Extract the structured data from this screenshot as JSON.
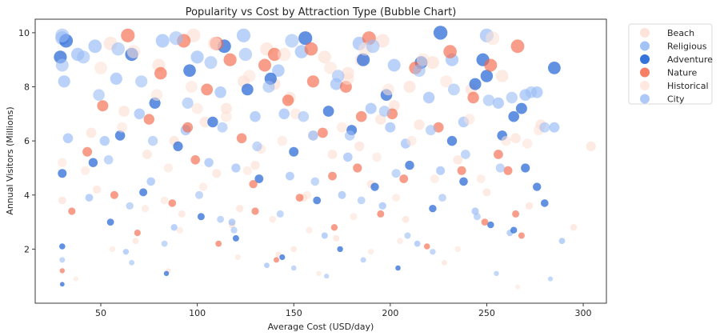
{
  "chart_data": {
    "type": "scatter",
    "subtype": "bubble",
    "title": "Popularity vs Cost by Attraction Type (Bubble Chart)",
    "xlabel": "Average Cost (USD/day)",
    "ylabel": "Annual Visitors (Millions)",
    "xlim": [
      16,
      312
    ],
    "ylim": [
      0,
      10.5
    ],
    "xticks": [
      50,
      100,
      150,
      200,
      250,
      300
    ],
    "yticks": [
      2,
      4,
      6,
      8,
      10
    ],
    "grid": false,
    "legend_position": "outside-top-right",
    "series": [
      {
        "name": "Beach",
        "color": "#fcd9cc",
        "alpha": 0.55,
        "points": [
          [
            30,
            3.8
          ],
          [
            45,
            6.3
          ],
          [
            48,
            4.2
          ],
          [
            55,
            9.6
          ],
          [
            62,
            7.1
          ],
          [
            68,
            2.3
          ],
          [
            74,
            5.5
          ],
          [
            80,
            8.8
          ],
          [
            85,
            1.2
          ],
          [
            92,
            3.3
          ],
          [
            98,
            9.9
          ],
          [
            104,
            6.7
          ],
          [
            110,
            4.8
          ],
          [
            118,
            2.9
          ],
          [
            124,
            8.2
          ],
          [
            130,
            5.1
          ],
          [
            136,
            9.4
          ],
          [
            142,
            1.8
          ],
          [
            148,
            7.6
          ],
          [
            155,
            3.9
          ],
          [
            160,
            6.2
          ],
          [
            166,
            9.1
          ],
          [
            172,
            2.4
          ],
          [
            178,
            8.5
          ],
          [
            184,
            5.8
          ],
          [
            190,
            4.4
          ],
          [
            196,
            9.7
          ],
          [
            202,
            7.3
          ],
          [
            208,
            3.1
          ],
          [
            215,
            6.6
          ],
          [
            222,
            8.9
          ],
          [
            228,
            1.5
          ],
          [
            235,
            5.3
          ],
          [
            242,
            7.9
          ],
          [
            250,
            4.1
          ],
          [
            258,
            8.4
          ],
          [
            265,
            6.1
          ],
          [
            272,
            3.6
          ],
          [
            278,
            6.6
          ],
          [
            295,
            2.8
          ],
          [
            304,
            5.8
          ],
          [
            88,
            6.0
          ],
          [
            115,
            7.2
          ],
          [
            140,
            8.1
          ],
          [
            170,
            5.5
          ],
          [
            195,
            6.8
          ],
          [
            122,
            3.5
          ],
          [
            150,
            2.0
          ],
          [
            185,
            9.0
          ],
          [
            210,
            8.0
          ]
        ]
      },
      {
        "name": "Religious",
        "color": "#8cb4f5",
        "alpha": 0.6,
        "points": [
          [
            30,
            9.8
          ],
          [
            31,
            8.2
          ],
          [
            33,
            6.1
          ],
          [
            38,
            9.2
          ],
          [
            44,
            3.9
          ],
          [
            47,
            9.5
          ],
          [
            52,
            6.0
          ],
          [
            58,
            8.3
          ],
          [
            63,
            1.9
          ],
          [
            70,
            7.0
          ],
          [
            76,
            4.5
          ],
          [
            82,
            9.7
          ],
          [
            88,
            2.8
          ],
          [
            94,
            6.4
          ],
          [
            100,
            9.1
          ],
          [
            106,
            5.2
          ],
          [
            112,
            7.8
          ],
          [
            118,
            3.0
          ],
          [
            124,
            9.9
          ],
          [
            130,
            6.9
          ],
          [
            136,
            1.4
          ],
          [
            142,
            8.6
          ],
          [
            148,
            4.7
          ],
          [
            154,
            9.3
          ],
          [
            160,
            6.2
          ],
          [
            166,
            2.5
          ],
          [
            172,
            8.1
          ],
          [
            178,
            5.4
          ],
          [
            184,
            9.6
          ],
          [
            190,
            7.2
          ],
          [
            196,
            3.6
          ],
          [
            202,
            8.8
          ],
          [
            208,
            5.9
          ],
          [
            214,
            2.2
          ],
          [
            220,
            7.6
          ],
          [
            226,
            4.9
          ],
          [
            232,
            9.0
          ],
          [
            238,
            6.7
          ],
          [
            244,
            3.4
          ],
          [
            250,
            9.9
          ],
          [
            256,
            7.4
          ],
          [
            262,
            2.6
          ],
          [
            270,
            7.7
          ],
          [
            276,
            7.8
          ],
          [
            285,
            6.5
          ],
          [
            289,
            2.3
          ],
          [
            120,
            5.0
          ],
          [
            145,
            7.0
          ],
          [
            175,
            4.0
          ],
          [
            200,
            6.5
          ]
        ]
      },
      {
        "name": "Adventure",
        "color": "#1f63d6",
        "alpha": 0.7,
        "points": [
          [
            29,
            9.1
          ],
          [
            30,
            4.8
          ],
          [
            30,
            2.1
          ],
          [
            30,
            0.7
          ],
          [
            32,
            9.7
          ],
          [
            46,
            5.2
          ],
          [
            55,
            3.0
          ],
          [
            60,
            6.2
          ],
          [
            66,
            9.2
          ],
          [
            72,
            4.1
          ],
          [
            78,
            7.4
          ],
          [
            84,
            1.1
          ],
          [
            90,
            5.8
          ],
          [
            96,
            8.6
          ],
          [
            102,
            3.2
          ],
          [
            108,
            6.7
          ],
          [
            114,
            9.5
          ],
          [
            120,
            2.4
          ],
          [
            126,
            7.9
          ],
          [
            132,
            4.6
          ],
          [
            138,
            8.3
          ],
          [
            144,
            1.7
          ],
          [
            150,
            5.6
          ],
          [
            156,
            9.8
          ],
          [
            162,
            3.8
          ],
          [
            168,
            7.1
          ],
          [
            174,
            2.0
          ],
          [
            180,
            6.4
          ],
          [
            186,
            9.0
          ],
          [
            192,
            4.3
          ],
          [
            198,
            7.7
          ],
          [
            204,
            1.3
          ],
          [
            210,
            5.1
          ],
          [
            216,
            8.9
          ],
          [
            222,
            3.5
          ],
          [
            226,
            10.0
          ],
          [
            232,
            6.0
          ],
          [
            238,
            4.5
          ],
          [
            244,
            8.1
          ],
          [
            250,
            8.4
          ],
          [
            252,
            2.9
          ],
          [
            258,
            6.2
          ],
          [
            264,
            6.9
          ],
          [
            268,
            7.2
          ],
          [
            276,
            4.3
          ],
          [
            280,
            3.7
          ],
          [
            285,
            8.7
          ],
          [
            264,
            2.7
          ],
          [
            270,
            5.0
          ],
          [
            248,
            9.0
          ]
        ]
      },
      {
        "name": "Nature",
        "color": "#f4694a",
        "alpha": 0.65,
        "points": [
          [
            30,
            1.2
          ],
          [
            35,
            3.4
          ],
          [
            43,
            5.6
          ],
          [
            51,
            7.3
          ],
          [
            57,
            4.0
          ],
          [
            64,
            9.9
          ],
          [
            69,
            2.6
          ],
          [
            75,
            6.8
          ],
          [
            81,
            8.5
          ],
          [
            87,
            3.7
          ],
          [
            93,
            9.7
          ],
          [
            99,
            5.3
          ],
          [
            105,
            7.9
          ],
          [
            111,
            2.2
          ],
          [
            117,
            9.0
          ],
          [
            123,
            6.1
          ],
          [
            129,
            4.4
          ],
          [
            135,
            8.8
          ],
          [
            141,
            1.6
          ],
          [
            147,
            7.5
          ],
          [
            153,
            3.9
          ],
          [
            159,
            9.4
          ],
          [
            165,
            6.3
          ],
          [
            171,
            2.8
          ],
          [
            177,
            8.0
          ],
          [
            183,
            5.0
          ],
          [
            189,
            9.8
          ],
          [
            195,
            3.3
          ],
          [
            201,
            7.0
          ],
          [
            207,
            4.6
          ],
          [
            213,
            8.7
          ],
          [
            219,
            2.1
          ],
          [
            225,
            6.5
          ],
          [
            231,
            9.3
          ],
          [
            237,
            4.9
          ],
          [
            243,
            7.6
          ],
          [
            249,
            3.0
          ],
          [
            252,
            8.8
          ],
          [
            256,
            5.5
          ],
          [
            261,
            4.9
          ],
          [
            266,
            9.5
          ],
          [
            268,
            2.5
          ],
          [
            265,
            3.3
          ],
          [
            110,
            9.6
          ],
          [
            140,
            9.2
          ],
          [
            160,
            8.2
          ],
          [
            185,
            6.9
          ],
          [
            95,
            6.5
          ],
          [
            130,
            3.4
          ],
          [
            170,
            4.7
          ]
        ]
      },
      {
        "name": "Historical",
        "color": "#fde0d6",
        "alpha": 0.55,
        "points": [
          [
            30,
            5.2
          ],
          [
            37,
            0.9
          ],
          [
            42,
            4.9
          ],
          [
            50,
            8.7
          ],
          [
            56,
            2.0
          ],
          [
            61,
            6.5
          ],
          [
            67,
            9.3
          ],
          [
            73,
            3.5
          ],
          [
            79,
            7.7
          ],
          [
            85,
            5.0
          ],
          [
            91,
            2.7
          ],
          [
            97,
            8.0
          ],
          [
            103,
            4.3
          ],
          [
            109,
            9.6
          ],
          [
            115,
            6.9
          ],
          [
            121,
            1.7
          ],
          [
            127,
            8.4
          ],
          [
            133,
            5.7
          ],
          [
            139,
            3.1
          ],
          [
            145,
            9.2
          ],
          [
            151,
            7.0
          ],
          [
            157,
            4.0
          ],
          [
            163,
            1.1
          ],
          [
            169,
            8.7
          ],
          [
            175,
            6.5
          ],
          [
            181,
            3.2
          ],
          [
            187,
            9.4
          ],
          [
            193,
            5.4
          ],
          [
            199,
            7.9
          ],
          [
            205,
            2.3
          ],
          [
            211,
            6.0
          ],
          [
            217,
            9.0
          ],
          [
            223,
            4.6
          ],
          [
            229,
            8.2
          ],
          [
            235,
            2.0
          ],
          [
            241,
            6.8
          ],
          [
            247,
            4.6
          ],
          [
            253,
            9.8
          ],
          [
            260,
            6.0
          ],
          [
            266,
            0.6
          ],
          [
            271,
            5.9
          ],
          [
            277,
            6.4
          ],
          [
            83,
            3.8
          ],
          [
            126,
            4.9
          ],
          [
            158,
            2.7
          ],
          [
            178,
            8.3
          ],
          [
            203,
            3.9
          ],
          [
            100,
            7.2
          ],
          [
            144,
            6.0
          ],
          [
            190,
            1.9
          ]
        ]
      },
      {
        "name": "City",
        "color": "#9bbcf5",
        "alpha": 0.6,
        "points": [
          [
            30,
            9.9
          ],
          [
            30,
            8.8
          ],
          [
            30,
            1.6
          ],
          [
            41,
            9.1
          ],
          [
            49,
            7.7
          ],
          [
            54,
            5.3
          ],
          [
            59,
            9.4
          ],
          [
            65,
            3.6
          ],
          [
            71,
            8.2
          ],
          [
            77,
            6.0
          ],
          [
            83,
            2.2
          ],
          [
            89,
            9.8
          ],
          [
            95,
            7.4
          ],
          [
            101,
            4.0
          ],
          [
            107,
            8.9
          ],
          [
            113,
            6.5
          ],
          [
            119,
            2.7
          ],
          [
            125,
            9.2
          ],
          [
            131,
            5.8
          ],
          [
            137,
            8.0
          ],
          [
            143,
            3.3
          ],
          [
            149,
            9.7
          ],
          [
            155,
            6.9
          ],
          [
            161,
            4.5
          ],
          [
            167,
            1.0
          ],
          [
            173,
            8.4
          ],
          [
            179,
            6.2
          ],
          [
            185,
            3.8
          ],
          [
            191,
            9.5
          ],
          [
            197,
            7.1
          ],
          [
            203,
            4.8
          ],
          [
            209,
            2.5
          ],
          [
            215,
            8.6
          ],
          [
            221,
            6.4
          ],
          [
            227,
            3.9
          ],
          [
            233,
            7.9
          ],
          [
            239,
            5.5
          ],
          [
            245,
            3.2
          ],
          [
            251,
            7.5
          ],
          [
            257,
            5.0
          ],
          [
            263,
            7.6
          ],
          [
            273,
            7.8
          ],
          [
            280,
            6.5
          ],
          [
            283,
            0.9
          ],
          [
            66,
            1.5
          ],
          [
            112,
            3.1
          ],
          [
            150,
            1.3
          ],
          [
            186,
            1.6
          ],
          [
            222,
            1.9
          ],
          [
            255,
            1.1
          ]
        ]
      }
    ],
    "size_note": "bubble size grows with annual visitors"
  }
}
